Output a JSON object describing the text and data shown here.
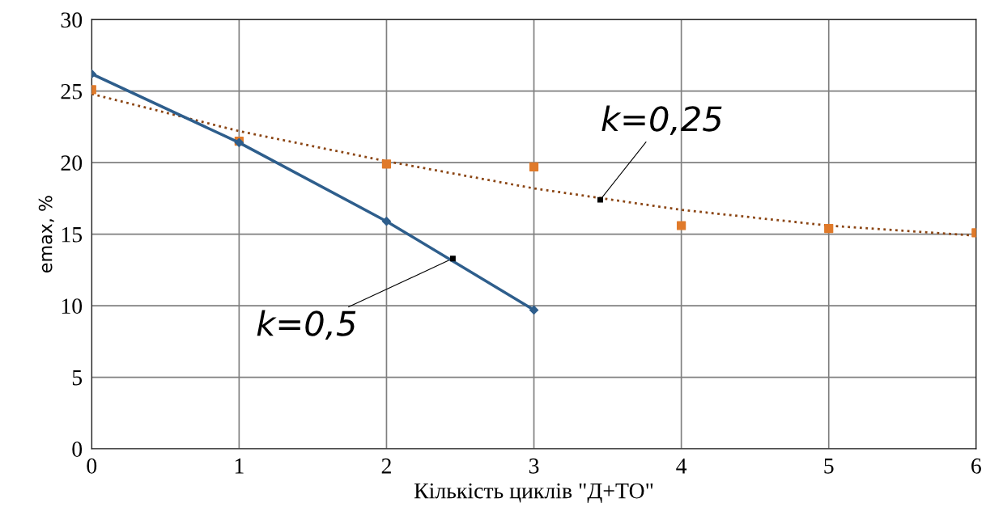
{
  "chart_data": {
    "type": "line",
    "xlabel": "Кількість циклів \"Д+ТО\"",
    "ylabel": "emax, %",
    "series": [
      {
        "type": "line",
        "color": "#2e5e8c",
        "marker": "diamond",
        "line_style": "solid",
        "x": [
          0,
          1,
          2,
          3
        ],
        "values": [
          26.2,
          21.4,
          15.9,
          9.7
        ]
      },
      {
        "type": "scatter",
        "color": "#e07a2a",
        "marker": "square",
        "x": [
          0,
          1,
          2,
          3,
          4,
          5,
          6
        ],
        "values": [
          25.1,
          21.5,
          19.9,
          19.7,
          15.6,
          15.4,
          15.1
        ]
      },
      {
        "color": "#8b4513",
        "marker": "none",
        "line_style": "dotted",
        "x": [
          0,
          1,
          2,
          3,
          4,
          5,
          6
        ],
        "values": [
          24.8,
          22.2,
          20.1,
          18.2,
          16.7,
          15.6,
          14.9
        ]
      }
    ],
    "annotations": [
      {
        "text": "k=0,5",
        "x": 2.45,
        "y": 13.3
      },
      {
        "text": "k=0,25",
        "x": 3.45,
        "y": 17.4
      }
    ],
    "xlim": [
      0,
      6
    ],
    "xticks": [
      0,
      1,
      2,
      3,
      4,
      5,
      6
    ],
    "ylim": [
      0,
      30
    ],
    "yticks": [
      0,
      5,
      10,
      15,
      20,
      25,
      30
    ],
    "grid": true,
    "legend": false
  }
}
